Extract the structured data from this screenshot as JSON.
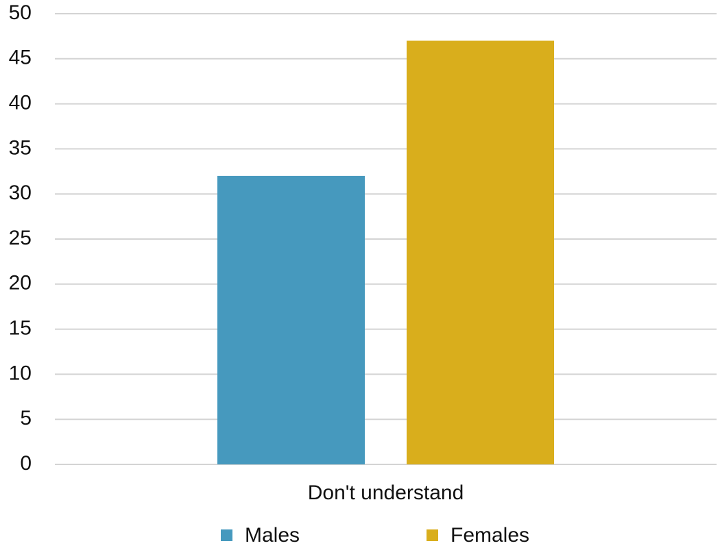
{
  "chart_data": {
    "type": "bar",
    "categories": [
      "Don't understand"
    ],
    "series": [
      {
        "name": "Males",
        "color": "#4699be",
        "values": [
          32
        ]
      },
      {
        "name": "Females",
        "color": "#d9ae1c",
        "values": [
          47
        ]
      }
    ],
    "ylim": [
      0,
      50
    ],
    "yticks": [
      0,
      5,
      10,
      15,
      20,
      25,
      30,
      35,
      40,
      45,
      50
    ],
    "grid": true,
    "legend": "bottom"
  }
}
